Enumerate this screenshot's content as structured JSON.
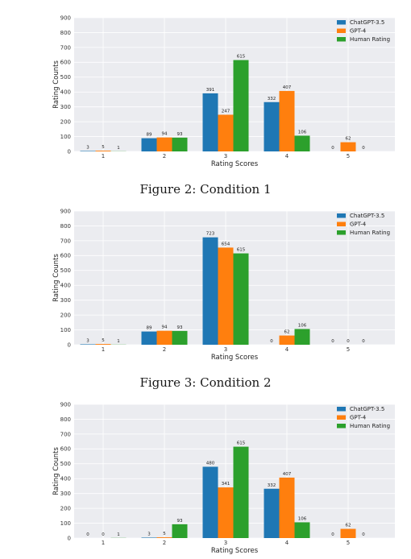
{
  "figures": [
    {
      "caption": "Figure 2: Condition 1"
    },
    {
      "caption": "Figure 3: Condition 2"
    },
    {
      "caption": ""
    }
  ],
  "colors": {
    "ChatGPT-3.5": "#1f77b4",
    "GPT-4": "#ff7f0e",
    "Human Rating": "#2ca02c",
    "plot_bg": "#ebecf0",
    "grid": "#ffffff"
  },
  "chart_data": [
    {
      "type": "bar",
      "title": "",
      "xlabel": "Rating Scores",
      "ylabel": "Rating Counts",
      "categories": [
        "1",
        "2",
        "3",
        "4",
        "5"
      ],
      "ylim": [
        0,
        900
      ],
      "yticks": [
        0,
        100,
        200,
        300,
        400,
        500,
        600,
        700,
        800,
        900
      ],
      "grid": true,
      "legend": "top-right",
      "series": [
        {
          "name": "ChatGPT-3.5",
          "values": [
            3,
            89,
            391,
            332,
            0
          ]
        },
        {
          "name": "GPT-4",
          "values": [
            5,
            94,
            247,
            407,
            62
          ]
        },
        {
          "name": "Human Rating",
          "values": [
            1,
            93,
            615,
            106,
            0
          ]
        }
      ]
    },
    {
      "type": "bar",
      "title": "",
      "xlabel": "Rating Scores",
      "ylabel": "Rating Counts",
      "categories": [
        "1",
        "2",
        "3",
        "4",
        "5"
      ],
      "ylim": [
        0,
        900
      ],
      "yticks": [
        0,
        100,
        200,
        300,
        400,
        500,
        600,
        700,
        800,
        900
      ],
      "grid": true,
      "legend": "top-right",
      "series": [
        {
          "name": "ChatGPT-3.5",
          "values": [
            3,
            89,
            723,
            0,
            0
          ]
        },
        {
          "name": "GPT-4",
          "values": [
            5,
            94,
            654,
            62,
            0
          ]
        },
        {
          "name": "Human Rating",
          "values": [
            1,
            93,
            615,
            106,
            0
          ]
        }
      ]
    },
    {
      "type": "bar",
      "title": "",
      "xlabel": "Rating Scores",
      "ylabel": "Rating Counts",
      "categories": [
        "1",
        "2",
        "3",
        "4",
        "5"
      ],
      "ylim": [
        0,
        900
      ],
      "yticks": [
        0,
        100,
        200,
        300,
        400,
        500,
        600,
        700,
        800,
        900
      ],
      "grid": true,
      "legend": "top-right",
      "series": [
        {
          "name": "ChatGPT-3.5",
          "values": [
            0,
            3,
            480,
            332,
            0
          ]
        },
        {
          "name": "GPT-4",
          "values": [
            0,
            5,
            341,
            407,
            62
          ]
        },
        {
          "name": "Human Rating",
          "values": [
            1,
            93,
            615,
            106,
            0
          ]
        }
      ]
    }
  ]
}
